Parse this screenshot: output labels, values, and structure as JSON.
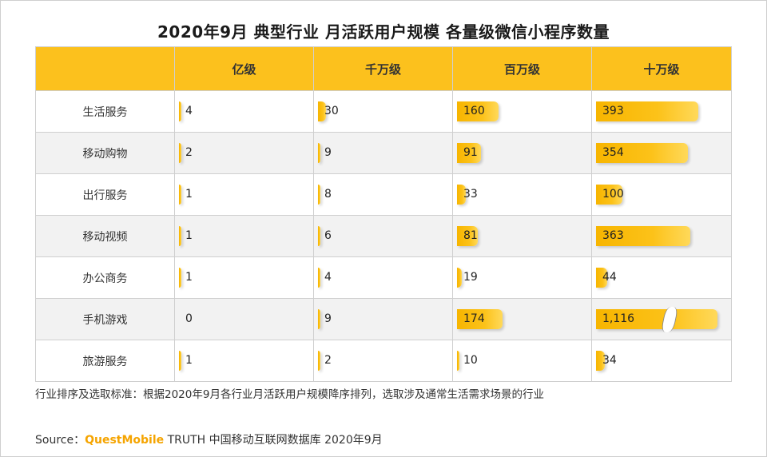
{
  "title": "2020年9月 典型行业 月活跃用户规模 各量级微信小程序数量",
  "columns": [
    "",
    "亿级",
    "千万级",
    "百万级",
    "十万级"
  ],
  "rows": [
    {
      "label": "生活服务",
      "values": [
        4,
        30,
        160,
        393
      ],
      "display": [
        "4",
        "30",
        "160",
        "393"
      ]
    },
    {
      "label": "移动购物",
      "values": [
        2,
        9,
        91,
        354
      ],
      "display": [
        "2",
        "9",
        "91",
        "354"
      ]
    },
    {
      "label": "出行服务",
      "values": [
        1,
        8,
        33,
        100
      ],
      "display": [
        "1",
        "8",
        "33",
        "100"
      ]
    },
    {
      "label": "移动视频",
      "values": [
        1,
        6,
        81,
        363
      ],
      "display": [
        "1",
        "6",
        "81",
        "363"
      ]
    },
    {
      "label": "办公商务",
      "values": [
        1,
        4,
        19,
        44
      ],
      "display": [
        "1",
        "4",
        "19",
        "44"
      ]
    },
    {
      "label": "手机游戏",
      "values": [
        0,
        9,
        174,
        1116
      ],
      "display": [
        "0",
        "9",
        "174",
        "1,116"
      ]
    },
    {
      "label": "旅游服务",
      "values": [
        1,
        2,
        10,
        34
      ],
      "display": [
        "1",
        "2",
        "10",
        "34"
      ]
    }
  ],
  "note": "行业排序及选取标准：根据2020年9月各行业月活跃用户规模降序排列，选取涉及通常生活需求场景的行业",
  "source": {
    "prefix": "Source：",
    "brand": "QuestMobile",
    "rest": " TRUTH 中国移动互联网数据库 2020年9月"
  },
  "colors": {
    "header": "#fcc11d",
    "bar": "#f7b500",
    "alt_row": "#f2f2f2"
  },
  "chart_data": {
    "type": "table",
    "title": "2020年9月 典型行业 月活跃用户规模 各量级微信小程序数量",
    "categories": [
      "生活服务",
      "移动购物",
      "出行服务",
      "移动视频",
      "办公商务",
      "手机游戏",
      "旅游服务"
    ],
    "series": [
      {
        "name": "亿级",
        "values": [
          4,
          2,
          1,
          1,
          1,
          0,
          1
        ]
      },
      {
        "name": "千万级",
        "values": [
          30,
          9,
          8,
          6,
          4,
          9,
          2
        ]
      },
      {
        "name": "百万级",
        "values": [
          160,
          91,
          33,
          81,
          19,
          174,
          10
        ]
      },
      {
        "name": "十万级",
        "values": [
          393,
          354,
          100,
          363,
          44,
          1116,
          34
        ]
      }
    ]
  }
}
